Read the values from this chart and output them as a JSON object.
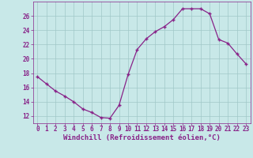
{
  "x": [
    0,
    1,
    2,
    3,
    4,
    5,
    6,
    7,
    8,
    9,
    10,
    11,
    12,
    13,
    14,
    15,
    16,
    17,
    18,
    19,
    20,
    21,
    22,
    23
  ],
  "y": [
    17.5,
    16.5,
    15.5,
    14.8,
    14.0,
    13.0,
    12.5,
    11.8,
    11.7,
    13.5,
    17.8,
    21.3,
    22.8,
    23.8,
    24.5,
    25.5,
    27.0,
    27.0,
    27.0,
    26.3,
    22.7,
    22.2,
    20.7,
    19.3
  ],
  "line_color": "#882288",
  "marker": "+",
  "marker_size": 3,
  "bg_color": "#c8e8e8",
  "grid_color": "#a0c8c8",
  "xlabel": "Windchill (Refroidissement éolien,°C)",
  "xlabel_color": "#882288",
  "tick_color": "#882288",
  "ylim": [
    11,
    28
  ],
  "yticks": [
    12,
    14,
    16,
    18,
    20,
    22,
    24,
    26
  ],
  "xlim": [
    -0.5,
    23.5
  ],
  "xticks": [
    0,
    1,
    2,
    3,
    4,
    5,
    6,
    7,
    8,
    9,
    10,
    11,
    12,
    13,
    14,
    15,
    16,
    17,
    18,
    19,
    20,
    21,
    22,
    23
  ],
  "tick_fontsize": 5.5,
  "ylabel_fontsize": 5.5,
  "xlabel_fontsize": 6.5
}
